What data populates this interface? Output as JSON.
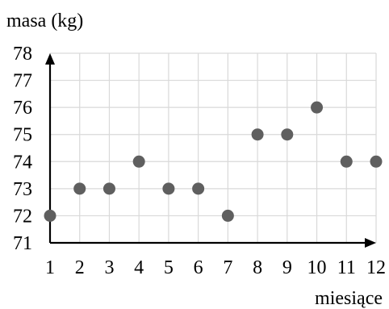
{
  "chart_data": {
    "type": "scatter",
    "ylabel": "masa (kg)",
    "xlabel": "miesiące",
    "x": [
      1,
      2,
      3,
      4,
      5,
      6,
      7,
      8,
      9,
      10,
      11,
      12
    ],
    "y": [
      72,
      73,
      73,
      74,
      73,
      73,
      72,
      75,
      75,
      76,
      74,
      74
    ],
    "xlim": [
      1,
      12
    ],
    "ylim": [
      71,
      78
    ],
    "x_ticks": [
      "1",
      "2",
      "3",
      "4",
      "5",
      "6",
      "7",
      "8",
      "9",
      "10",
      "11",
      "12"
    ],
    "y_ticks": [
      "71",
      "72",
      "73",
      "74",
      "75",
      "76",
      "77",
      "78"
    ],
    "grid": true,
    "colors": {
      "marker": "#5f5f5f",
      "grid": "#d9d9d9",
      "axis": "#000000"
    }
  }
}
